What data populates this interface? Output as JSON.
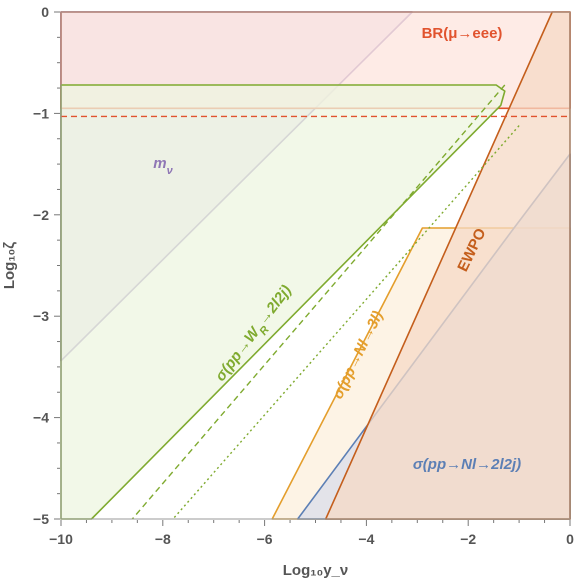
{
  "chart_data": {
    "type": "area",
    "xlabel": "Log₁₀y_ν",
    "ylabel": "Log₁₀ζ",
    "xlim": [
      -10,
      0
    ],
    "ylim": [
      -5,
      0
    ],
    "x_ticks": [
      -10,
      -8,
      -6,
      -4,
      -2,
      0
    ],
    "y_ticks": [
      -5,
      -4,
      -3,
      -2,
      -1,
      0
    ],
    "x_tick_labels": [
      "−10",
      "−8",
      "−6",
      "−4",
      "−2",
      "0"
    ],
    "y_tick_labels": [
      "−5",
      "−4",
      "−3",
      "−2",
      "−1",
      "0"
    ],
    "regions": [
      {
        "label": "m_ν",
        "label_text": "m",
        "label_sub": "ν",
        "color": "#8F77B5",
        "fill": "#E3DAEC",
        "polygon": [
          [
            -10,
            0
          ],
          [
            -3.1,
            0
          ],
          [
            -10,
            -3.44
          ]
        ]
      },
      {
        "label": "BR(μ→eee)",
        "label_text": "BR(μ→eee)",
        "color": "#E1532E",
        "fill": "#FDE4DD",
        "polygon": [
          [
            -10,
            0
          ],
          [
            0,
            0
          ],
          [
            0,
            -0.95
          ],
          [
            -10,
            -0.95
          ]
        ],
        "dashed_line_y": -1.03
      },
      {
        "label": "σ(pp→W_R→2l2j)",
        "label_text": "σ(pp→W",
        "label_sub": "R",
        "label_after": "→2l2j)",
        "color": "#7FAA2F",
        "fill": "#EEF5E0",
        "polygon": [
          [
            -10,
            -0.72
          ],
          [
            -1.45,
            -0.72
          ],
          [
            -1.28,
            -0.78
          ],
          [
            -1.36,
            -0.92
          ],
          [
            -9.4,
            -5
          ],
          [
            -10,
            -5
          ]
        ],
        "dashed_boundary": [
          [
            -1.28,
            -0.72
          ],
          [
            -8.6,
            -5
          ]
        ],
        "dotted_boundary": [
          [
            -1.0,
            -1.12
          ],
          [
            -7.8,
            -5
          ]
        ]
      },
      {
        "label": "σ(pp→Nl→3l)",
        "label_text": "σ(pp→Nl→3l)",
        "color": "#E49E2C",
        "fill": "#FCEFDC",
        "polygon": [
          [
            -2.9,
            -2.13
          ],
          [
            0,
            -2.13
          ],
          [
            0,
            -5
          ],
          [
            -5.85,
            -5
          ]
        ]
      },
      {
        "label": "σ(pp→Nl→2l2j)",
        "label_text": "σ(pp→Nl→2l2j)",
        "color": "#5C7FB5",
        "fill": "#D9DEEA",
        "polygon": [
          [
            -1.1,
            -2.13
          ],
          [
            0,
            -1.4
          ],
          [
            0,
            -5
          ],
          [
            -5.35,
            -5
          ]
        ]
      },
      {
        "label": "EWPO",
        "label_text": "EWPO",
        "color": "#C45E1C",
        "fill": "#F6D9C5",
        "polygon": [
          [
            -0.35,
            0
          ],
          [
            0,
            0
          ],
          [
            0,
            -5
          ],
          [
            -4.8,
            -5
          ]
        ]
      }
    ]
  }
}
